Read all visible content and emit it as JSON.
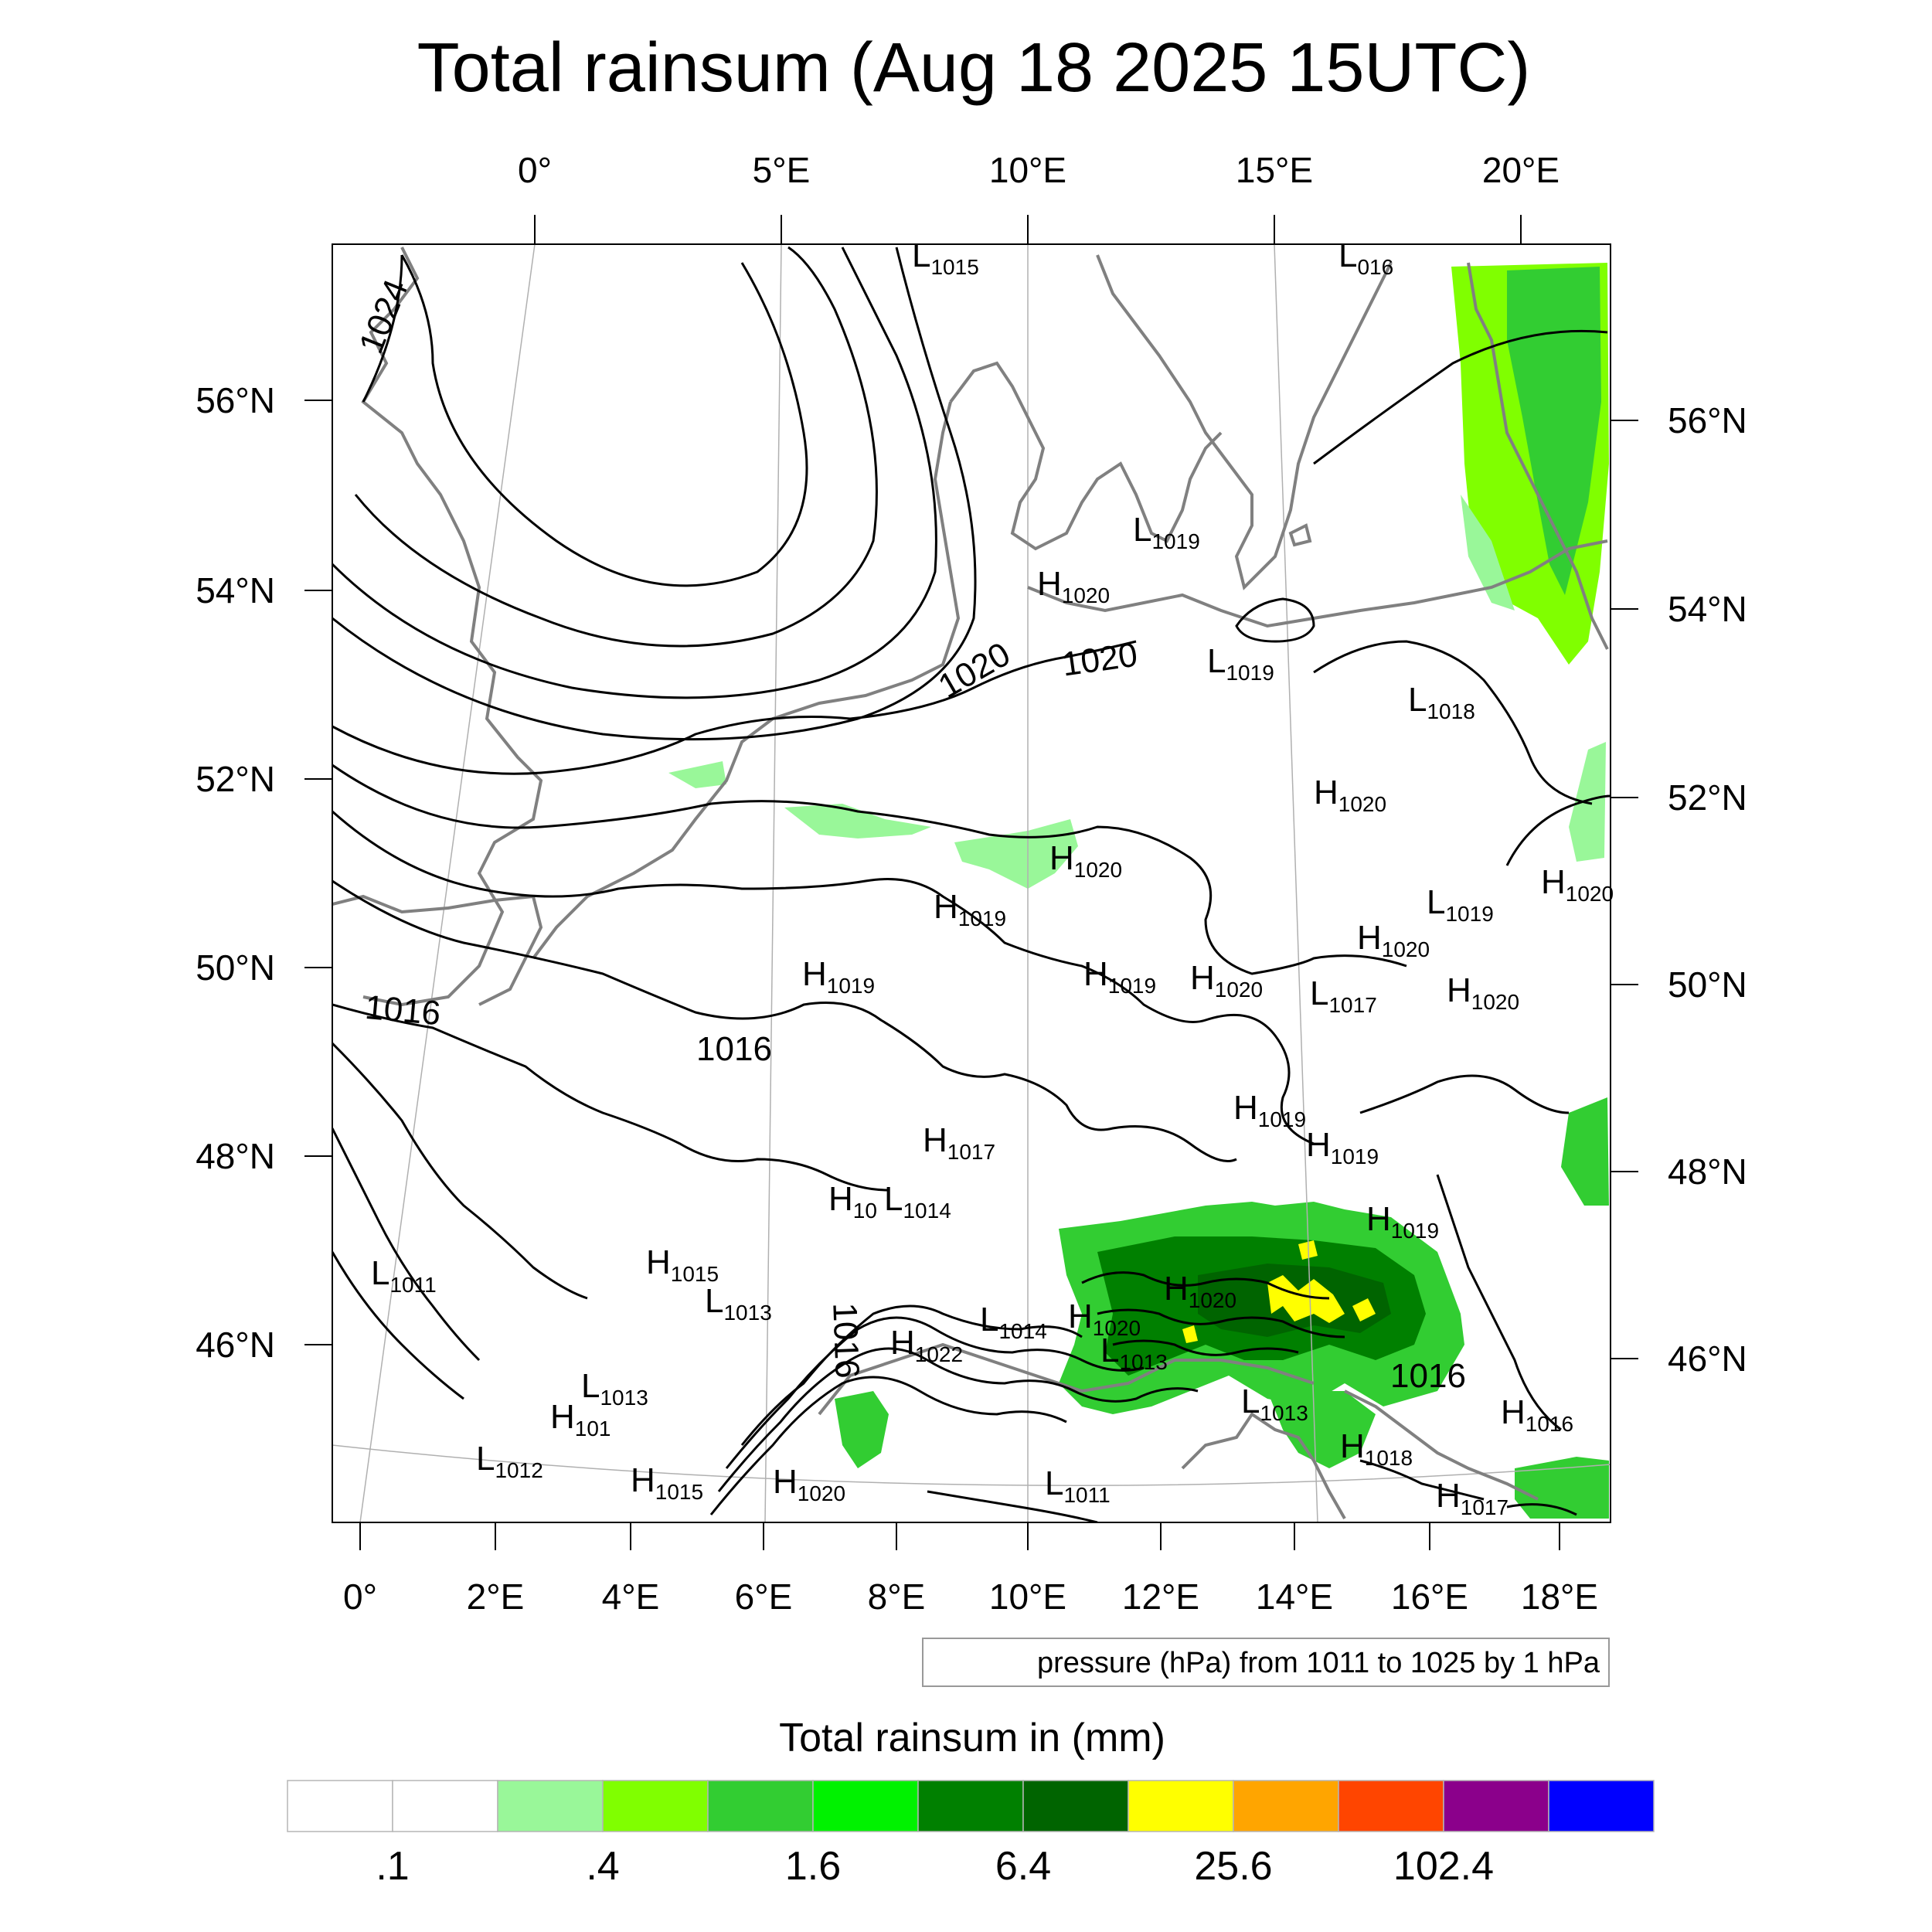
{
  "title": "Total rainsum (Aug 18 2025 15UTC)",
  "top_axis": [
    "0°",
    "5°E",
    "10°E",
    "15°E",
    "20°E"
  ],
  "bottom_axis": [
    "0°",
    "2°E",
    "4°E",
    "6°E",
    "8°E",
    "10°E",
    "12°E",
    "14°E",
    "16°E",
    "18°E"
  ],
  "left_axis": [
    "56°N",
    "54°N",
    "52°N",
    "50°N",
    "48°N",
    "46°N"
  ],
  "right_axis": [
    "56°N",
    "54°N",
    "52°N",
    "50°N",
    "48°N",
    "46°N"
  ],
  "isobar_labels": [
    "1024",
    "1020",
    "1020",
    "1016",
    "1016",
    "1016",
    "1016"
  ],
  "pressure_centers": [
    {
      "type": "L",
      "value": "1015"
    },
    {
      "type": "L",
      "value": "016"
    },
    {
      "type": "L",
      "value": "1019"
    },
    {
      "type": "H",
      "value": "1020"
    },
    {
      "type": "L",
      "value": "1019"
    },
    {
      "type": "L",
      "value": "1018"
    },
    {
      "type": "H",
      "value": "1020"
    },
    {
      "type": "H",
      "value": "1020"
    },
    {
      "type": "H",
      "value": "1019"
    },
    {
      "type": "H",
      "value": "1019"
    },
    {
      "type": "H",
      "value": "1019"
    },
    {
      "type": "H",
      "value": "1020"
    },
    {
      "type": "L",
      "value": "1017"
    },
    {
      "type": "H",
      "value": "1020"
    },
    {
      "type": "L",
      "value": "1019"
    },
    {
      "type": "H",
      "value": "1020"
    },
    {
      "type": "H",
      "value": "1020"
    },
    {
      "type": "H",
      "value": "1019"
    },
    {
      "type": "H",
      "value": "1017"
    },
    {
      "type": "H",
      "value": "1019"
    },
    {
      "type": "H",
      "value": "10"
    },
    {
      "type": "L",
      "value": "1014"
    },
    {
      "type": "H",
      "value": "1019"
    },
    {
      "type": "H",
      "value": "1015"
    },
    {
      "type": "L",
      "value": "1011"
    },
    {
      "type": "L",
      "value": "1013"
    },
    {
      "type": "H",
      "value": "1020"
    },
    {
      "type": "L",
      "value": "1014"
    },
    {
      "type": "H",
      "value": "1020"
    },
    {
      "type": "H",
      "value": "1022"
    },
    {
      "type": "L",
      "value": "1013"
    },
    {
      "type": "L",
      "value": "1013"
    },
    {
      "type": "L",
      "value": "1013"
    },
    {
      "type": "H",
      "value": "101"
    },
    {
      "type": "H",
      "value": "1016"
    },
    {
      "type": "H",
      "value": "1018"
    },
    {
      "type": "L",
      "value": "1012"
    },
    {
      "type": "H",
      "value": "1015"
    },
    {
      "type": "H",
      "value": "1020"
    },
    {
      "type": "L",
      "value": "1011"
    },
    {
      "type": "H",
      "value": "1017"
    }
  ],
  "contour_note": "pressure (hPa) from 1011 to 1025 by 1 hPa",
  "colorbar": {
    "title": "Total rainsum in (mm)",
    "colors": [
      "#ffffff",
      "#ffffff",
      "#99f799",
      "#80ff00",
      "#32cd32",
      "#00f200",
      "#008000",
      "#006400",
      "#ffff00",
      "#ffa500",
      "#ff4500",
      "#8b008b",
      "#0000ff"
    ],
    "labels": [
      ".1",
      ".4",
      "1.6",
      "6.4",
      "25.6",
      "102.4"
    ]
  },
  "legend_colors": {
    "coast": "#808080",
    "isobar": "#000000",
    "grid": "#b0b0b0"
  }
}
